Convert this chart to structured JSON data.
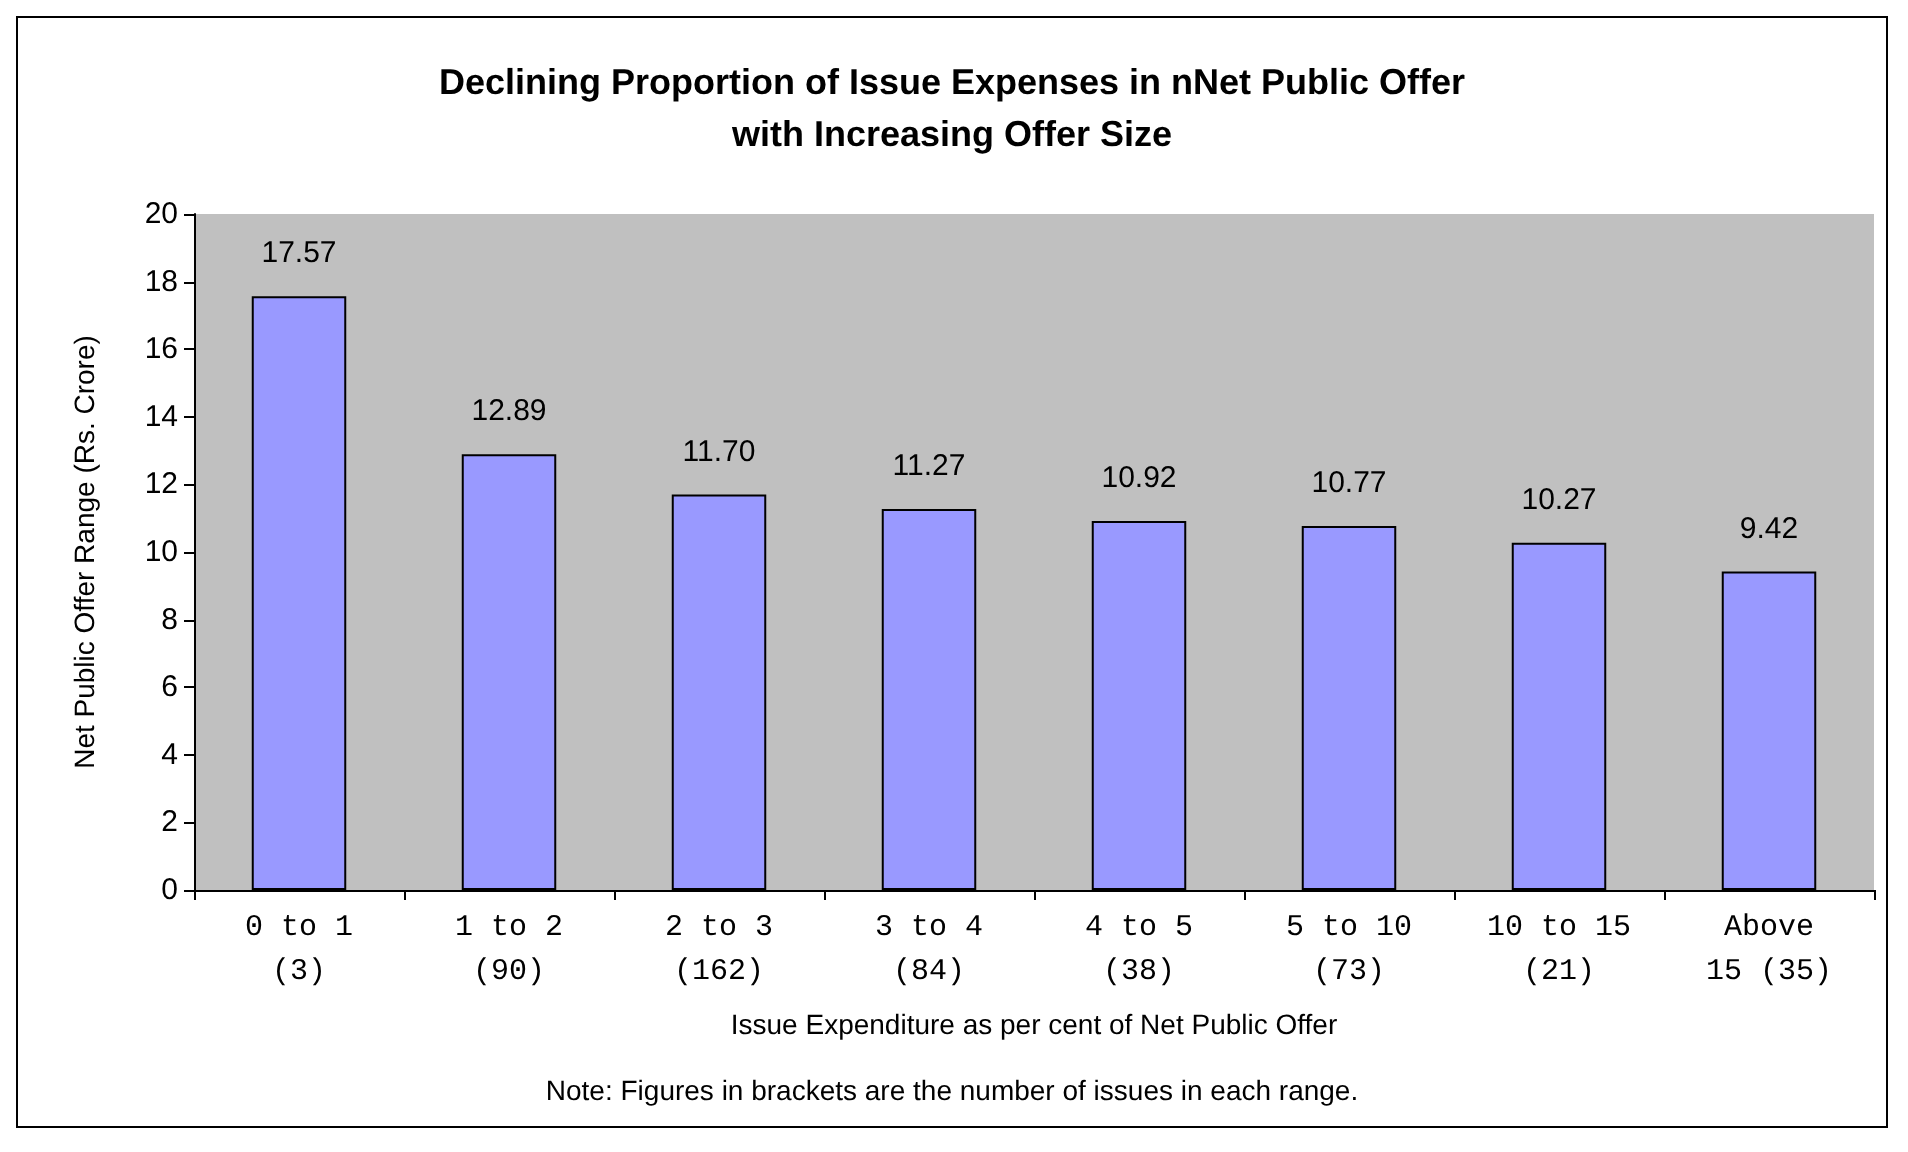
{
  "chart_data": {
    "type": "bar",
    "title": "Declining Proportion of Issue Expenses in nNet Public Offer\nwith Increasing Offer Size",
    "xlabel": "Issue Expenditure as per cent of Net Public Offer",
    "ylabel": "Net Public Offer Range (Rs. Crore)",
    "categories": [
      "0 to 1\n(3)",
      "1 to 2\n(90)",
      "2 to 3\n(162)",
      "3 to 4\n(84)",
      "4 to 5\n(38)",
      "5 to 10\n(73)",
      "10 to 15\n(21)",
      "Above\n15 (35)"
    ],
    "values": [
      17.57,
      12.89,
      11.7,
      11.27,
      10.92,
      10.77,
      10.27,
      9.42
    ],
    "value_labels": [
      "17.57",
      "12.89",
      "11.70",
      "11.27",
      "10.92",
      "10.77",
      "10.27",
      "9.42"
    ],
    "color": "#9999ff",
    "ylim": [
      0,
      20
    ],
    "yticks": [
      0,
      2,
      4,
      6,
      8,
      10,
      12,
      14,
      16,
      18,
      20
    ],
    "grid": false,
    "annotations": [
      "Note: Figures in brackets are the number of issues in each range."
    ]
  }
}
